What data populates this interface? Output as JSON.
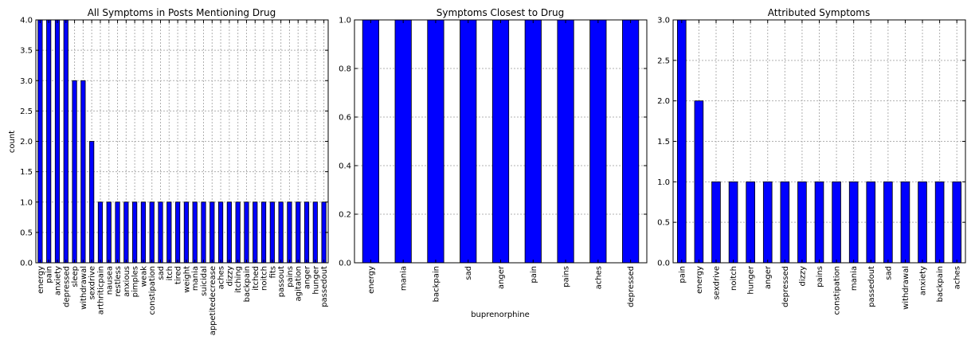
{
  "colors": {
    "bar": "#0000ff",
    "background": "#ffffff",
    "grid": "#b0b0b0"
  },
  "chart_data": [
    {
      "type": "bar",
      "title": "All Symptoms in Posts Mentioning Drug",
      "xlabel": "",
      "ylabel": "count",
      "ylim": [
        0,
        4.0
      ],
      "yticks": [
        "0.0",
        "0.5",
        "1.0",
        "1.5",
        "2.0",
        "2.5",
        "3.0",
        "3.5",
        "4.0"
      ],
      "grid": true,
      "categories": [
        "energy",
        "pain",
        "anxiety",
        "depressed",
        "sleep",
        "withdrawal",
        "sexdrive",
        "arthriticpain",
        "nausea",
        "restless",
        "anxious",
        "pimples",
        "weak",
        "constipation",
        "sad",
        "itch",
        "tired",
        "weight",
        "mania",
        "suicidal",
        "appetitedecrease",
        "aches",
        "dizzy",
        "itching",
        "backpain",
        "itched",
        "noitch",
        "fits",
        "passout",
        "pains",
        "agitation",
        "anger",
        "hunger",
        "passedout"
      ],
      "values": [
        4,
        4,
        4,
        4,
        3,
        3,
        2,
        1,
        1,
        1,
        1,
        1,
        1,
        1,
        1,
        1,
        1,
        1,
        1,
        1,
        1,
        1,
        1,
        1,
        1,
        1,
        1,
        1,
        1,
        1,
        1,
        1,
        1,
        1
      ]
    },
    {
      "type": "bar",
      "title": "Symptoms Closest to Drug",
      "xlabel": "buprenorphine",
      "ylabel": "",
      "ylim": [
        0,
        1.0
      ],
      "yticks": [
        "0.0",
        "0.2",
        "0.4",
        "0.6",
        "0.8",
        "1.0"
      ],
      "grid": true,
      "categories": [
        "energy",
        "mania",
        "backpain",
        "sad",
        "anger",
        "pain",
        "pains",
        "aches",
        "depressed"
      ],
      "values": [
        1,
        1,
        1,
        1,
        1,
        1,
        1,
        1,
        1
      ]
    },
    {
      "type": "bar",
      "title": "Attributed Symptoms",
      "xlabel": "",
      "ylabel": "",
      "ylim": [
        0,
        3.0
      ],
      "yticks": [
        "0.0",
        "0.5",
        "1.0",
        "1.5",
        "2.0",
        "2.5",
        "3.0"
      ],
      "grid": true,
      "categories": [
        "pain",
        "energy",
        "sexdrive",
        "noitch",
        "hunger",
        "anger",
        "depressed",
        "dizzy",
        "pains",
        "constipation",
        "mania",
        "passedout",
        "sad",
        "withdrawal",
        "anxiety",
        "backpain",
        "aches"
      ],
      "values": [
        3,
        2,
        1,
        1,
        1,
        1,
        1,
        1,
        1,
        1,
        1,
        1,
        1,
        1,
        1,
        1,
        1
      ]
    }
  ]
}
